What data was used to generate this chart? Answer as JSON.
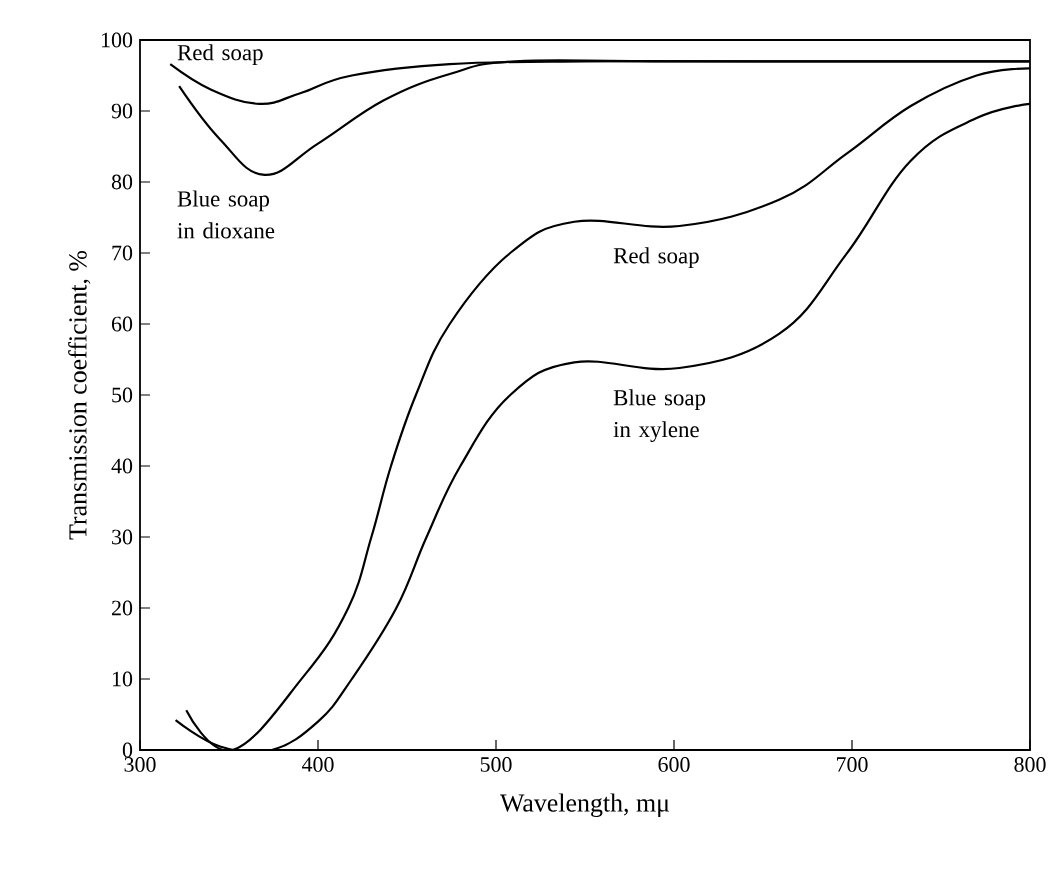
{
  "chart_data": {
    "type": "line",
    "xlabel": "Wavelength, mμ",
    "ylabel": "Transmission coefficient, %",
    "xlim": [
      300,
      800
    ],
    "xticks": [
      300,
      400,
      500,
      600,
      700,
      800
    ],
    "ylim": [
      0,
      100
    ],
    "yticks": [
      0,
      10,
      20,
      30,
      40,
      50,
      60,
      70,
      80,
      90,
      100
    ],
    "grid": false,
    "series": [
      {
        "name": "Red soap",
        "color": "#000000",
        "x": [
          317,
          340,
          367,
          390,
          419,
          474,
          550,
          650,
          800
        ],
        "values": [
          96.6,
          93,
          91,
          92.5,
          95,
          96.6,
          97,
          97,
          97
        ]
      },
      {
        "name": "Blue soap in dioxane",
        "color": "#000000",
        "x": [
          322,
          345,
          370,
          400,
          437,
          474,
          511,
          600,
          800
        ],
        "values": [
          93.5,
          86,
          81,
          85.4,
          91.5,
          95.2,
          97,
          97,
          97
        ]
      },
      {
        "name": "Red soap",
        "color": "#000000",
        "x": [
          326,
          352,
          392,
          417,
          430,
          441,
          455,
          474,
          508,
          544,
          603,
          659,
          697,
          733,
          770,
          800
        ],
        "values": [
          5.6,
          0,
          10.4,
          20,
          30,
          40,
          50,
          60,
          70,
          74.4,
          73.8,
          77.5,
          84,
          90.7,
          95,
          96
        ]
      },
      {
        "name": "Blue soap in xylene",
        "color": "#000000",
        "x": [
          320,
          345,
          374,
          400,
          419,
          444,
          461,
          480,
          508,
          544,
          603,
          659,
          697,
          733,
          770,
          800
        ],
        "values": [
          4.2,
          0.5,
          0,
          4,
          10,
          20,
          30,
          40,
          50,
          54.6,
          53.8,
          58.6,
          69.9,
          83,
          89,
          91
        ]
      }
    ]
  }
}
